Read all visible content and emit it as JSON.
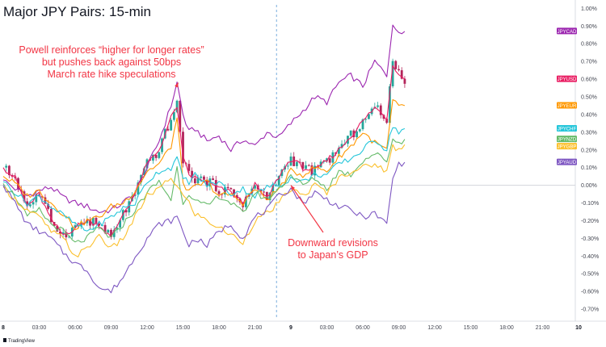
{
  "chart_data": {
    "type": "line",
    "title": "Major JPY Pairs: 15-min",
    "xlabel": "",
    "ylabel": "",
    "x_ticks": [
      "8",
      "03:00",
      "06:00",
      "09:00",
      "12:00",
      "15:00",
      "18:00",
      "21:00",
      "9",
      "03:00",
      "06:00",
      "09:00",
      "12:00",
      "15:00",
      "18:00",
      "21:00",
      "10"
    ],
    "x_range_hours": [
      0,
      48
    ],
    "y_ticks": [
      "1.00%",
      "0.90%",
      "0.80%",
      "0.70%",
      "0.60%",
      "0.50%",
      "0.40%",
      "0.30%",
      "0.20%",
      "0.10%",
      "0.00%",
      "-0.10%",
      "-0.20%",
      "-0.30%",
      "-0.40%",
      "-0.50%",
      "-0.60%",
      "-0.70%"
    ],
    "ylim": [
      -0.75,
      1.02
    ],
    "grid": false,
    "day_separator_hour": 22.8,
    "legend_placement": "right",
    "series": [
      {
        "name": "JPYCAD",
        "color": "#9c27b0",
        "x": [
          0,
          1,
          2,
          3,
          4,
          5,
          6,
          7,
          8,
          9,
          10,
          11,
          12,
          13,
          14,
          14.5,
          15,
          15.5,
          16,
          17,
          18,
          19,
          20,
          21,
          22,
          23,
          24,
          25,
          26,
          27,
          28,
          29,
          30,
          31,
          32,
          32.5,
          33,
          33.5
        ],
        "y": [
          0.03,
          -0.02,
          -0.06,
          -0.03,
          -0.01,
          -0.07,
          -0.1,
          -0.12,
          -0.15,
          -0.14,
          -0.1,
          -0.04,
          0.1,
          0.25,
          0.45,
          0.58,
          0.4,
          0.3,
          0.32,
          0.25,
          0.28,
          0.2,
          0.26,
          0.22,
          0.3,
          0.27,
          0.35,
          0.42,
          0.5,
          0.47,
          0.58,
          0.62,
          0.56,
          0.7,
          0.62,
          0.92,
          0.85,
          0.87
        ]
      },
      {
        "name": "JPYUSD",
        "color": "#e91e63",
        "x": [
          0,
          1,
          2,
          3,
          4,
          5,
          6,
          7,
          8,
          9,
          10,
          11,
          12,
          13,
          14,
          14.5,
          15,
          15.5,
          16,
          17,
          18,
          19,
          20,
          21,
          22,
          23,
          24,
          25,
          26,
          27,
          28,
          29,
          30,
          31,
          32,
          32.5,
          33,
          33.5
        ],
        "y": [
          0.1,
          0.04,
          -0.12,
          -0.05,
          -0.2,
          -0.28,
          -0.24,
          -0.2,
          -0.22,
          -0.3,
          -0.16,
          -0.05,
          0.12,
          0.2,
          0.38,
          0.45,
          0.15,
          0.06,
          0.04,
          0.02,
          -0.02,
          -0.04,
          -0.1,
          0.0,
          -0.08,
          0.05,
          0.15,
          0.1,
          0.08,
          0.14,
          0.2,
          0.28,
          0.36,
          0.44,
          0.38,
          0.68,
          0.64,
          0.6
        ]
      },
      {
        "name": "JPYEUR",
        "color": "#ff9800",
        "x": [
          0,
          1,
          2,
          3,
          4,
          5,
          6,
          7,
          8,
          9,
          10,
          11,
          12,
          13,
          14,
          14.5,
          15,
          15.5,
          16,
          17,
          18,
          19,
          20,
          21,
          22,
          23,
          24,
          25,
          26,
          27,
          28,
          29,
          30,
          31,
          32,
          32.5,
          33,
          33.5
        ],
        "y": [
          0.05,
          0.01,
          -0.06,
          -0.03,
          -0.1,
          -0.16,
          -0.24,
          -0.2,
          -0.18,
          -0.12,
          -0.1,
          -0.03,
          0.08,
          0.12,
          0.22,
          0.38,
          0.02,
          -0.04,
          -0.01,
          0.02,
          -0.06,
          -0.05,
          -0.1,
          -0.02,
          -0.08,
          -0.02,
          0.08,
          0.06,
          0.1,
          0.08,
          0.16,
          0.22,
          0.3,
          0.24,
          0.2,
          0.48,
          0.44,
          0.45
        ]
      },
      {
        "name": "JPYCHF",
        "color": "#26c6da",
        "x": [
          0,
          1,
          2,
          3,
          4,
          5,
          6,
          7,
          8,
          9,
          10,
          11,
          12,
          13,
          14,
          14.5,
          15,
          15.5,
          16,
          17,
          18,
          19,
          20,
          21,
          22,
          23,
          24,
          25,
          26,
          27,
          28,
          29,
          30,
          31,
          32,
          32.5,
          33,
          33.5
        ],
        "y": [
          0.02,
          -0.04,
          -0.1,
          -0.06,
          -0.12,
          -0.17,
          -0.22,
          -0.26,
          -0.22,
          -0.18,
          -0.13,
          -0.1,
          0.02,
          0.08,
          0.1,
          0.15,
          0.04,
          0.02,
          0.06,
          0.0,
          0.02,
          -0.05,
          -0.02,
          -0.06,
          -0.01,
          0.0,
          0.04,
          0.02,
          0.06,
          0.06,
          0.12,
          0.15,
          0.2,
          0.26,
          0.2,
          0.34,
          0.3,
          0.32
        ]
      },
      {
        "name": "JPYNZD",
        "color": "#66bb6a",
        "x": [
          0,
          1,
          2,
          3,
          4,
          5,
          6,
          7,
          8,
          9,
          10,
          11,
          12,
          13,
          14,
          14.5,
          15,
          15.5,
          16,
          17,
          18,
          19,
          20,
          21,
          22,
          23,
          24,
          25,
          26,
          27,
          28,
          29,
          30,
          31,
          32,
          32.5,
          33,
          33.5
        ],
        "y": [
          0.01,
          -0.06,
          -0.18,
          -0.14,
          -0.22,
          -0.26,
          -0.33,
          -0.3,
          -0.24,
          -0.3,
          -0.22,
          -0.14,
          -0.04,
          0.02,
          -0.08,
          0.1,
          -0.1,
          -0.04,
          -0.09,
          -0.12,
          -0.06,
          -0.1,
          -0.16,
          -0.04,
          -0.08,
          -0.02,
          0.06,
          0.0,
          0.04,
          -0.02,
          0.08,
          0.06,
          0.14,
          0.18,
          0.14,
          0.26,
          0.24,
          0.26
        ]
      },
      {
        "name": "JPYGBP",
        "color": "#fbc02d",
        "x": [
          0,
          1,
          2,
          3,
          4,
          5,
          6,
          7,
          8,
          9,
          10,
          11,
          12,
          13,
          14,
          14.5,
          15,
          15.5,
          16,
          17,
          18,
          19,
          20,
          21,
          22,
          23,
          24,
          25,
          26,
          27,
          28,
          29,
          30,
          31,
          32,
          32.5,
          33,
          33.5
        ],
        "y": [
          -0.01,
          -0.08,
          -0.14,
          -0.18,
          -0.26,
          -0.3,
          -0.4,
          -0.36,
          -0.28,
          -0.36,
          -0.3,
          -0.18,
          -0.06,
          -0.02,
          0.04,
          0.0,
          -0.06,
          -0.1,
          -0.16,
          -0.2,
          -0.24,
          -0.28,
          -0.32,
          -0.2,
          -0.16,
          -0.1,
          -0.02,
          -0.06,
          0.0,
          -0.04,
          0.04,
          0.08,
          0.1,
          0.12,
          0.08,
          0.22,
          0.2,
          0.23
        ]
      },
      {
        "name": "JPYAUD",
        "color": "#7e57c2",
        "x": [
          0,
          1,
          2,
          3,
          4,
          5,
          6,
          7,
          8,
          9,
          10,
          11,
          12,
          13,
          14,
          14.5,
          15,
          15.5,
          16,
          17,
          18,
          19,
          20,
          21,
          22,
          23,
          24,
          25,
          26,
          27,
          28,
          29,
          30,
          31,
          32,
          32.5,
          33,
          33.5
        ],
        "y": [
          0.0,
          -0.1,
          -0.22,
          -0.26,
          -0.3,
          -0.38,
          -0.44,
          -0.48,
          -0.58,
          -0.6,
          -0.52,
          -0.4,
          -0.3,
          -0.22,
          -0.2,
          -0.18,
          -0.26,
          -0.34,
          -0.3,
          -0.34,
          -0.26,
          -0.22,
          -0.3,
          -0.18,
          -0.14,
          -0.06,
          -0.02,
          -0.1,
          -0.04,
          -0.08,
          -0.12,
          -0.14,
          -0.18,
          -0.16,
          -0.22,
          0.04,
          0.12,
          0.13
        ]
      }
    ],
    "candles": {
      "series_ref": "JPYUSD",
      "up_color": "#26a69a",
      "down_color": "#b3245a"
    },
    "annotations": [
      {
        "lines": [
          "Powell reinforces “higher for longer rates”",
          "but pushes back against 50bps",
          "March rate hike speculations"
        ],
        "color": "#f23645",
        "arrow_to_hour": 14.6,
        "arrow_to_value": 0.58
      },
      {
        "lines": [
          "Downward revisions",
          "to Japan’s GDP"
        ],
        "color": "#f23645",
        "arrow_to_hour": 24.0,
        "arrow_to_value": 0.0
      }
    ]
  },
  "branding": {
    "watermark": "TradingView"
  }
}
